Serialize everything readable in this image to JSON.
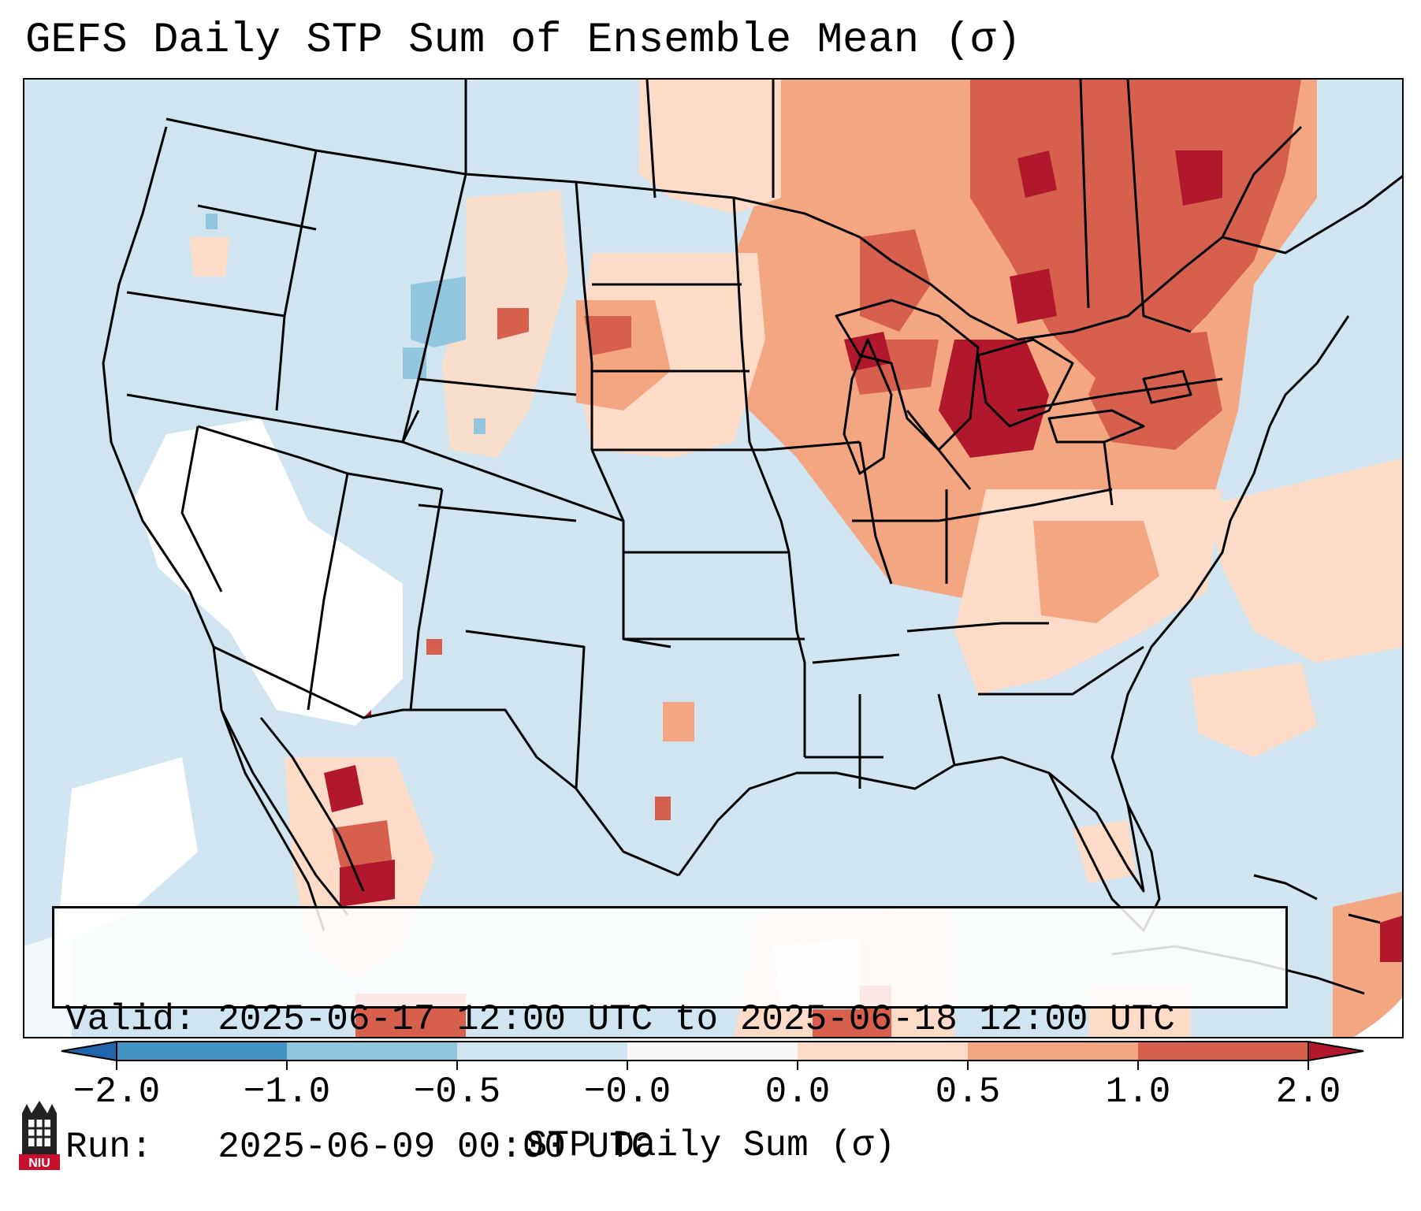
{
  "title": "GEFS Daily STP Sum of Ensemble Mean (σ)",
  "info": {
    "valid_label": "Valid:",
    "valid_value": "2025-06-17 12:00 UTC to 2025-06-18 12:00 UTC",
    "run_label": "Run:  ",
    "run_value": "2025-06-09 00:00 UTC"
  },
  "colorbar": {
    "label": "STP Daily Sum (σ)",
    "ticks": [
      "−2.0",
      "−1.0",
      "−0.5",
      "−0.0",
      "0.0",
      "0.5",
      "1.0",
      "2.0"
    ],
    "bins": [
      {
        "range": "below -2.0",
        "color": "#2166ac"
      },
      {
        "range": "-2.0 to -1.0",
        "color": "#4393c3"
      },
      {
        "range": "-1.0 to -0.5",
        "color": "#92c5de"
      },
      {
        "range": "-0.5 to -0.0",
        "color": "#d1e5f0"
      },
      {
        "range": "-0.0 to 0.0",
        "color": "#f7f7f7"
      },
      {
        "range": "0.0 to 0.5",
        "color": "#fddbc7"
      },
      {
        "range": "0.5 to 1.0",
        "color": "#f4a582"
      },
      {
        "range": "1.0 to 2.0",
        "color": "#d6604d"
      },
      {
        "range": "above 2.0",
        "color": "#b2182b"
      }
    ]
  },
  "logo": {
    "text": "NIU"
  },
  "map_colors": {
    "background": "#d1e5f0",
    "neutral": "#ffffff",
    "light_red": "#fddbc7",
    "mid_red": "#f4a582",
    "red": "#d6604d",
    "dark_red": "#b2182b",
    "light_blue": "#92c5de",
    "border": "#000000"
  }
}
